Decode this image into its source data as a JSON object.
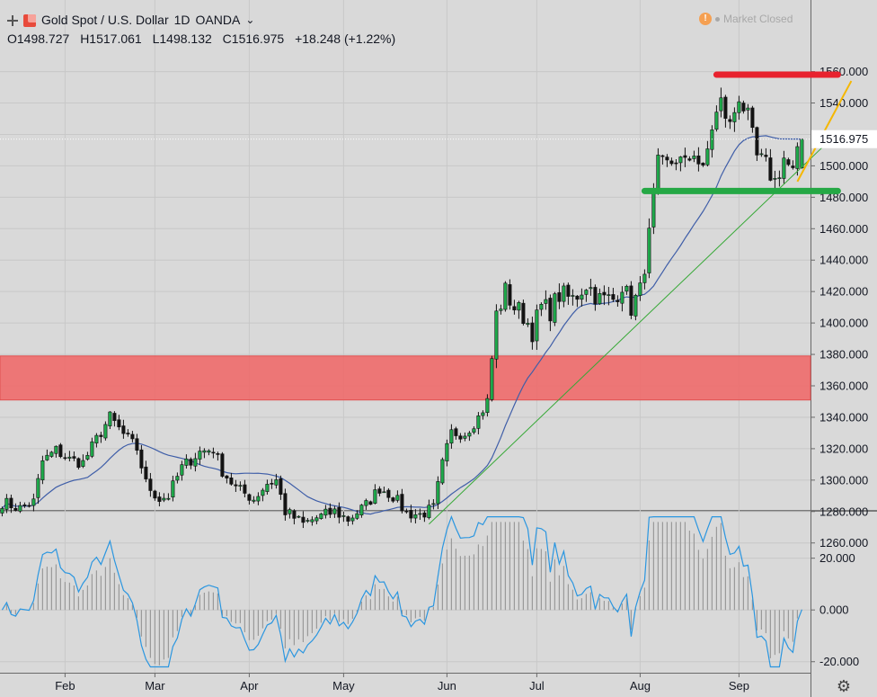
{
  "header": {
    "symbol": "Gold Spot / U.S. Dollar",
    "interval": "1D",
    "exchange": "OANDA",
    "open": "O1498.727",
    "high": "H1517.061",
    "low": "L1498.132",
    "close": "C1516.975",
    "change": "+18.248 (+1.22%)",
    "market_status": "Market Closed",
    "market_status_icon": "!"
  },
  "colors": {
    "background": "#d9d9d9",
    "bull": "#1ea84a",
    "bear": "#131313",
    "ma": "#3f5ea8",
    "trend": "#35a835",
    "resistance": "#e8222e",
    "support": "#25a845",
    "breakout": "#f5b700",
    "zone": "#ee6a6a",
    "oscillator": "#2a96e0",
    "histogram": "#9a9a9a"
  },
  "chart_data": [
    {
      "type": "candlestick",
      "title": "Gold Spot / U.S. Dollar",
      "ylim": [
        1250,
        1570
      ],
      "y_ticks": [
        "1260.000",
        "1280.000",
        "1300.000",
        "1320.000",
        "1340.000",
        "1360.000",
        "1380.000",
        "1400.000",
        "1420.000",
        "1440.000",
        "1460.000",
        "1480.000",
        "1500.000",
        "1520.000",
        "1540.000",
        "1560.000"
      ],
      "x_labels": [
        {
          "label": "Feb",
          "bar": 14
        },
        {
          "label": "Mar",
          "bar": 34
        },
        {
          "label": "Apr",
          "bar": 55
        },
        {
          "label": "May",
          "bar": 76
        },
        {
          "label": "Jun",
          "bar": 99
        },
        {
          "label": "Jul",
          "bar": 119
        },
        {
          "label": "Aug",
          "bar": 142
        },
        {
          "label": "Sep",
          "bar": 164
        }
      ],
      "last_price": "1516.975",
      "last_price_value": 1516.975,
      "anchors": [
        [
          0,
          1286
        ],
        [
          4,
          1282
        ],
        [
          7,
          1286
        ],
        [
          9,
          1312
        ],
        [
          12,
          1319
        ],
        [
          15,
          1313
        ],
        [
          18,
          1311
        ],
        [
          21,
          1326
        ],
        [
          24,
          1340
        ],
        [
          27,
          1329
        ],
        [
          30,
          1320
        ],
        [
          32,
          1298
        ],
        [
          35,
          1288
        ],
        [
          37,
          1290
        ],
        [
          40,
          1308
        ],
        [
          44,
          1318
        ],
        [
          47,
          1320
        ],
        [
          49,
          1306
        ],
        [
          52,
          1295
        ],
        [
          56,
          1288
        ],
        [
          59,
          1298
        ],
        [
          61,
          1300
        ],
        [
          63,
          1280
        ],
        [
          67,
          1272
        ],
        [
          70,
          1276
        ],
        [
          74,
          1280
        ],
        [
          77,
          1275
        ],
        [
          81,
          1284
        ],
        [
          84,
          1295
        ],
        [
          87,
          1290
        ],
        [
          90,
          1279
        ],
        [
          93,
          1278
        ],
        [
          96,
          1282
        ],
        [
          98,
          1310
        ],
        [
          100,
          1330
        ],
        [
          103,
          1330
        ],
        [
          106,
          1340
        ],
        [
          108,
          1350
        ],
        [
          110,
          1405
        ],
        [
          112,
          1420
        ],
        [
          114,
          1410
        ],
        [
          116,
          1405
        ],
        [
          118,
          1395
        ],
        [
          120,
          1410
        ],
        [
          122,
          1408
        ],
        [
          124,
          1418
        ],
        [
          127,
          1415
        ],
        [
          130,
          1425
        ],
        [
          133,
          1415
        ],
        [
          136,
          1415
        ],
        [
          138,
          1425
        ],
        [
          140,
          1410
        ],
        [
          142,
          1420
        ],
        [
          144,
          1455
        ],
        [
          146,
          1500
        ],
        [
          148,
          1500
        ],
        [
          150,
          1505
        ],
        [
          152,
          1500
        ],
        [
          154,
          1510
        ],
        [
          156,
          1495
        ],
        [
          158,
          1525
        ],
        [
          160,
          1540
        ],
        [
          162,
          1525
        ],
        [
          164,
          1545
        ],
        [
          166,
          1530
        ],
        [
          168,
          1505
        ],
        [
          170,
          1500
        ],
        [
          172,
          1490
        ],
        [
          174,
          1505
        ],
        [
          176,
          1495
        ],
        [
          178,
          1517
        ]
      ],
      "last_candle": {
        "bar": 178,
        "open": 1498.727,
        "high": 1517.061,
        "low": 1498.132,
        "close": 1516.975
      },
      "overlays": {
        "resistance_line": {
          "value": 1558,
          "from_bar": 159,
          "to_bar": 186
        },
        "support_line": {
          "value": 1484,
          "from_bar": 143,
          "to_bar": 186
        },
        "zone": {
          "low": 1351,
          "high": 1379
        },
        "trendline": {
          "from": [
            95,
            1272
          ],
          "to": [
            183,
            1513
          ]
        },
        "breakout_line": {
          "from": [
            177,
            1490
          ],
          "to": [
            189,
            1554
          ]
        }
      },
      "moving_average_period": 20
    },
    {
      "type": "line",
      "ylim": [
        -23,
        38
      ],
      "y_ticks": [
        "20.000",
        "0.000",
        "-20.000"
      ],
      "y_tick_values": [
        20,
        0,
        -20
      ],
      "series": [
        {
          "type": "line"
        },
        {
          "type": "histogram"
        }
      ]
    }
  ]
}
